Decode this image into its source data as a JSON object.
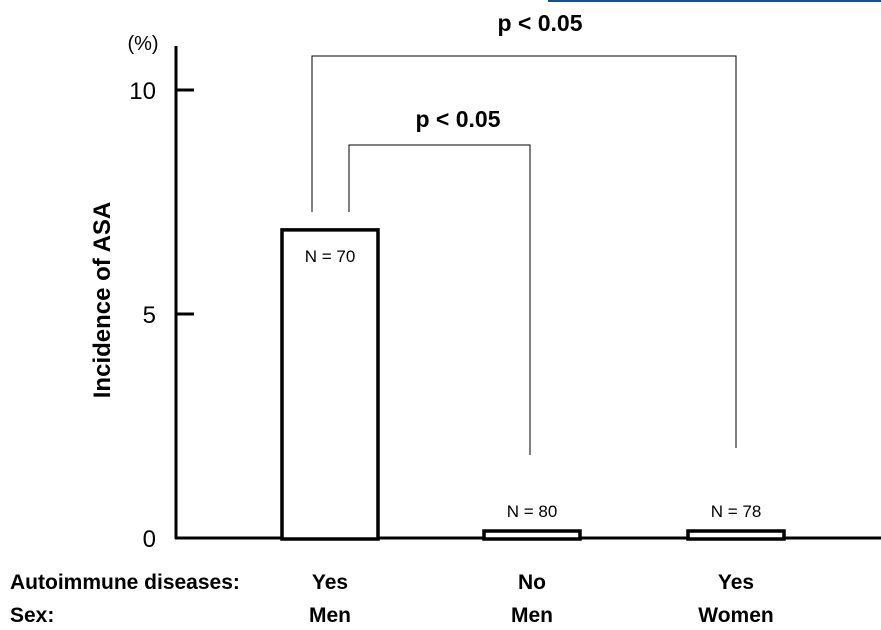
{
  "chart_data": {
    "type": "bar",
    "ylabel": "Incidence of ASA",
    "yunit": "(%)",
    "ylim": [
      0,
      10
    ],
    "yticks": [
      0,
      5,
      10
    ],
    "row_labels": [
      "Autoimmune diseases:",
      "Sex:"
    ],
    "categories": [
      {
        "autoimmune": "Yes",
        "sex": "Men",
        "n_label": "N = 70"
      },
      {
        "autoimmune": "No",
        "sex": "Men",
        "n_label": "N = 80"
      },
      {
        "autoimmune": "Yes",
        "sex": "Women",
        "n_label": "N = 78"
      }
    ],
    "values": [
      6.9,
      0.1,
      0.1
    ],
    "significance": [
      {
        "from": 0,
        "to": 1,
        "label": "p < 0.05"
      },
      {
        "from": 0,
        "to": 2,
        "label": "p < 0.05"
      }
    ],
    "grid": false
  },
  "colors": {
    "bar_fill": "#ffffff",
    "bar_stroke": "#000000",
    "accent_rule": "#1a4f8a"
  }
}
